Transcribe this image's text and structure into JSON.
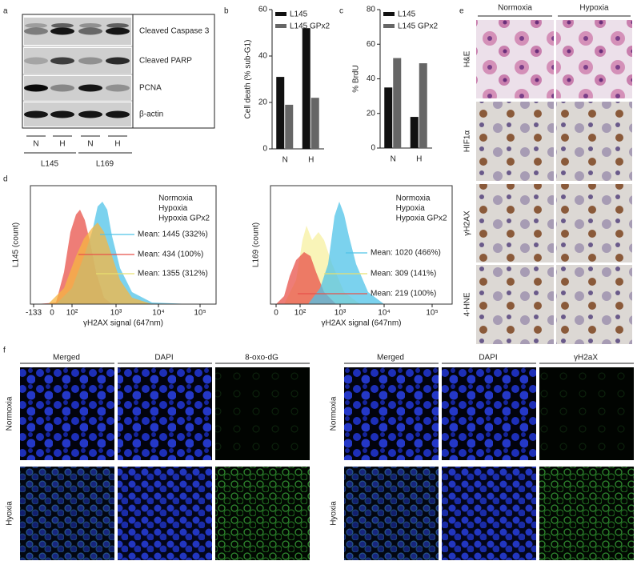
{
  "panel_labels": [
    "a",
    "b",
    "c",
    "d",
    "e",
    "f"
  ],
  "blot": {
    "bands": [
      "Cleaved Caspase 3",
      "Cleaved PARP",
      "PCNA",
      "β-actin"
    ],
    "lanes": [
      "N",
      "H",
      "N",
      "H"
    ],
    "groups": [
      "L145",
      "L169"
    ]
  },
  "chart_data": [
    {
      "type": "bar",
      "ylabel": "Cell death (% sub-G1)",
      "categories": [
        "N",
        "H"
      ],
      "series": [
        {
          "name": "L145",
          "color": "#111111",
          "values": [
            31,
            52
          ]
        },
        {
          "name": "L145 GPx2",
          "color": "#666666",
          "values": [
            19,
            22
          ]
        }
      ],
      "ylim": [
        0,
        60
      ],
      "yticks": [
        0,
        20,
        40,
        60
      ]
    },
    {
      "type": "bar",
      "ylabel": "% BrdU",
      "categories": [
        "N",
        "H"
      ],
      "series": [
        {
          "name": "L145",
          "color": "#111111",
          "values": [
            35,
            18
          ]
        },
        {
          "name": "L145 GPx2",
          "color": "#666666",
          "values": [
            52,
            49
          ]
        }
      ],
      "ylim": [
        0,
        80
      ],
      "yticks": [
        0,
        20,
        40,
        60,
        80
      ]
    }
  ],
  "flow": [
    {
      "ylabel": "L145 (count)",
      "xlabel": "γH2AX signal (647nm)",
      "legend": [
        "Normoxia",
        "Hypoxia",
        "Hypoxia GPx2"
      ],
      "tick_labels": [
        "-133",
        "0",
        "10²",
        "10³",
        "10⁴",
        "10⁵"
      ],
      "means": [
        "Mean: 1445 (332%)",
        "Mean: 434 (100%)",
        "Mean: 1355 (312%)"
      ]
    },
    {
      "ylabel": "L169 (count)",
      "xlabel": "γH2AX signal (647nm)",
      "legend": [
        "Normoxia",
        "Hypoxia",
        "Hypoxia GPx2"
      ],
      "tick_labels": [
        "0",
        "10²",
        "10³",
        "10⁴",
        "10⁵"
      ],
      "means": [
        "Mean: 1020 (466%)",
        "Mean: 309 (141%)",
        "Mean: 219 (100%)"
      ]
    }
  ],
  "ihc": {
    "columns": [
      "Normoxia",
      "Hypoxia"
    ],
    "rows": [
      "H&E",
      "HIF1α",
      "γH2AX",
      "4-HNE"
    ]
  },
  "if": {
    "rows": [
      "Normoxia",
      "Hyoxia"
    ],
    "left_columns": [
      "Merged",
      "DAPI",
      "8-oxo-dG"
    ],
    "right_columns": [
      "Merged",
      "DAPI",
      "γH2aX"
    ]
  }
}
